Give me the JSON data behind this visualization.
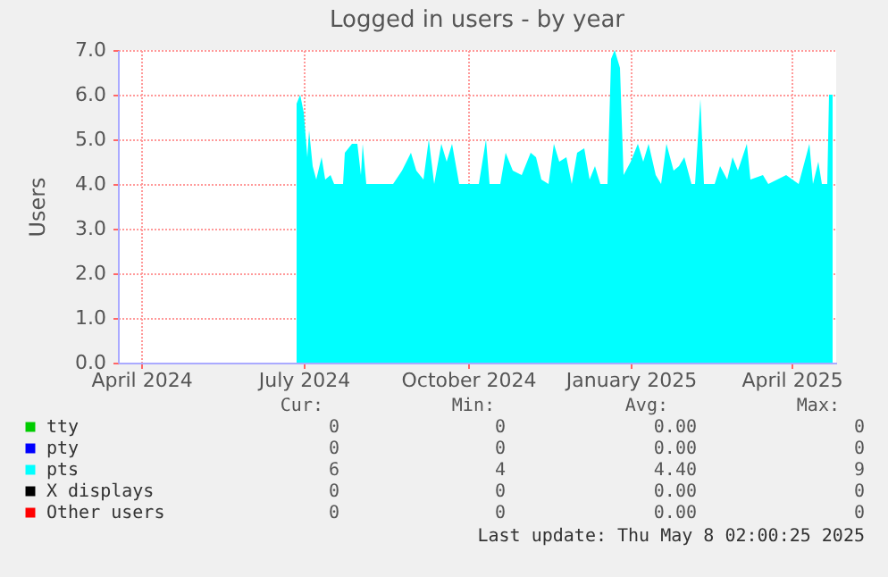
{
  "chart_data": {
    "type": "area",
    "title": "Logged in users - by year",
    "ylabel": "Users",
    "x": [
      "2024-07-16",
      "2024-07-18",
      "2024-07-20",
      "2024-07-22",
      "2024-07-23",
      "2024-07-25",
      "2024-07-27",
      "2024-07-30",
      "2024-08-01",
      "2024-08-04",
      "2024-08-06",
      "2024-08-11",
      "2024-08-12",
      "2024-08-16",
      "2024-08-19",
      "2024-08-21",
      "2024-08-22",
      "2024-08-24",
      "2024-09-08",
      "2024-09-13",
      "2024-09-18",
      "2024-09-21",
      "2024-09-25",
      "2024-09-28",
      "2024-10-01",
      "2024-10-05",
      "2024-10-08",
      "2024-10-11",
      "2024-10-15",
      "2024-10-26",
      "2024-10-30",
      "2024-11-01",
      "2024-11-07",
      "2024-11-10",
      "2024-11-14",
      "2024-11-19",
      "2024-11-24",
      "2024-11-27",
      "2024-11-30",
      "2024-12-04",
      "2024-12-07",
      "2024-12-10",
      "2024-12-14",
      "2024-12-17",
      "2024-12-20",
      "2024-12-24",
      "2024-12-27",
      "2024-12-30",
      "2025-01-02",
      "2025-01-06",
      "2025-01-08",
      "2025-01-10",
      "2025-01-13",
      "2025-01-15",
      "2025-01-19",
      "2025-01-23",
      "2025-01-26",
      "2025-01-29",
      "2025-02-02",
      "2025-02-05",
      "2025-02-08",
      "2025-02-12",
      "2025-02-15",
      "2025-02-18",
      "2025-02-22",
      "2025-02-24",
      "2025-02-27",
      "2025-03-01",
      "2025-03-07",
      "2025-03-10",
      "2025-03-14",
      "2025-03-17",
      "2025-03-20",
      "2025-03-25",
      "2025-03-27",
      "2025-04-03",
      "2025-04-06",
      "2025-04-16",
      "2025-04-23",
      "2025-04-29",
      "2025-05-01",
      "2025-05-04",
      "2025-05-06",
      "2025-05-09",
      "2025-05-10",
      "2025-05-12"
    ],
    "series": [
      {
        "name": "tty",
        "color": "#00cc00",
        "values": [
          null,
          null,
          null,
          null,
          null,
          null,
          null,
          null,
          null,
          null,
          null,
          null,
          null,
          null,
          null,
          null,
          null,
          null,
          null,
          null,
          null,
          null,
          null,
          null,
          null,
          null,
          null,
          null,
          null,
          null,
          null,
          null,
          null,
          null,
          null,
          null,
          null,
          null,
          null,
          null,
          null,
          null,
          null,
          null,
          null,
          null,
          null,
          null,
          null,
          null,
          null,
          null,
          null,
          null,
          null,
          null,
          null,
          null,
          null,
          null,
          null,
          null,
          null,
          null,
          null,
          null,
          null,
          null,
          null,
          null,
          null,
          null,
          null,
          null,
          null,
          null,
          null,
          null,
          null,
          null,
          null,
          null,
          null,
          null,
          null,
          null
        ]
      },
      {
        "name": "pty",
        "color": "#0000ff",
        "values": [
          null,
          null,
          null,
          null,
          null,
          null,
          null,
          null,
          null,
          null,
          null,
          null,
          null,
          null,
          null,
          null,
          null,
          null,
          null,
          null,
          null,
          null,
          null,
          null,
          null,
          null,
          null,
          null,
          null,
          null,
          null,
          null,
          null,
          null,
          null,
          null,
          null,
          null,
          null,
          null,
          null,
          null,
          null,
          null,
          null,
          null,
          null,
          null,
          null,
          null,
          null,
          null,
          null,
          null,
          null,
          null,
          null,
          null,
          null,
          null,
          null,
          null,
          null,
          null,
          null,
          null,
          null,
          null,
          null,
          null,
          null,
          null,
          null,
          null,
          null,
          null,
          null,
          null,
          null,
          null,
          null,
          null,
          null,
          null,
          null,
          null
        ]
      },
      {
        "name": "pts",
        "color": "#00ffff",
        "values": [
          5.8,
          6.0,
          5.6,
          4.6,
          5.2,
          4.4,
          4.1,
          4.6,
          4.1,
          4.2,
          4.0,
          4.0,
          4.7,
          4.9,
          4.9,
          4.2,
          4.9,
          4.0,
          4.0,
          4.3,
          4.7,
          4.3,
          4.1,
          5.0,
          4.0,
          4.9,
          4.5,
          4.9,
          4.0,
          4.0,
          5.0,
          4.0,
          4.0,
          4.7,
          4.3,
          4.2,
          4.7,
          4.6,
          4.1,
          4.0,
          4.9,
          4.5,
          4.6,
          4.0,
          4.7,
          4.8,
          4.1,
          4.4,
          4.0,
          4.0,
          6.8,
          7.0,
          6.6,
          4.2,
          4.5,
          4.9,
          4.5,
          4.9,
          4.2,
          4.0,
          4.9,
          4.3,
          4.4,
          4.6,
          4.0,
          4.0,
          5.9,
          4.0,
          4.0,
          4.4,
          4.1,
          4.6,
          4.3,
          4.9,
          4.1,
          4.2,
          4.0,
          4.2,
          4.0,
          4.9,
          4.0,
          4.5,
          4.0,
          4.0,
          6.0,
          6.0
        ]
      },
      {
        "name": "X displays",
        "color": "#000000",
        "values": [
          null,
          null,
          null,
          null,
          null,
          null,
          null,
          null,
          null,
          null,
          null,
          null,
          null,
          null,
          null,
          null,
          null,
          null,
          null,
          null,
          null,
          null,
          null,
          null,
          null,
          null,
          null,
          null,
          null,
          null,
          null,
          null,
          null,
          null,
          null,
          null,
          null,
          null,
          null,
          null,
          null,
          null,
          null,
          null,
          null,
          null,
          null,
          null,
          null,
          null,
          null,
          null,
          null,
          null,
          null,
          null,
          null,
          null,
          null,
          null,
          null,
          null,
          null,
          null,
          null,
          null,
          null,
          null,
          null,
          null,
          null,
          null,
          null,
          null,
          null,
          null,
          null,
          null,
          null,
          null,
          null,
          null,
          null,
          null,
          null,
          null
        ]
      },
      {
        "name": "Other users",
        "color": "#ff0000",
        "values": [
          null,
          null,
          null,
          null,
          null,
          null,
          null,
          null,
          null,
          null,
          null,
          null,
          null,
          null,
          null,
          null,
          null,
          null,
          null,
          null,
          null,
          null,
          null,
          null,
          null,
          null,
          null,
          null,
          null,
          null,
          null,
          null,
          null,
          null,
          null,
          null,
          null,
          null,
          null,
          null,
          null,
          null,
          null,
          null,
          null,
          null,
          null,
          null,
          null,
          null,
          null,
          null,
          null,
          null,
          null,
          null,
          null,
          null,
          null,
          null,
          null,
          null,
          null,
          null,
          null,
          null,
          null,
          null,
          null,
          null,
          null,
          null,
          null,
          null,
          null,
          null,
          null,
          null,
          null,
          null,
          null,
          null,
          null,
          null,
          null,
          null
        ]
      }
    ],
    "xlim": [
      "2024-04-07",
      "2025-05-14"
    ],
    "xticks": [
      {
        "value": "2024-04-20",
        "label": "April 2024"
      },
      {
        "value": "2024-07-20",
        "label": "July 2024"
      },
      {
        "value": "2024-10-20",
        "label": "October 2024"
      },
      {
        "value": "2025-01-19",
        "label": "January 2025"
      },
      {
        "value": "2025-04-19",
        "label": "April 2025"
      }
    ],
    "ylim": [
      0,
      7
    ],
    "yticks": [
      {
        "value": 0,
        "label": "0.0"
      },
      {
        "value": 1,
        "label": "1.0"
      },
      {
        "value": 2,
        "label": "2.0"
      },
      {
        "value": 3,
        "label": "3.0"
      },
      {
        "value": 4,
        "label": "4.0"
      },
      {
        "value": 5,
        "label": "5.0"
      },
      {
        "value": 6,
        "label": "6.0"
      },
      {
        "value": 7,
        "label": "7.0"
      }
    ],
    "grid": true,
    "legend": "bottom",
    "annotations": [
      "Cur:",
      "Min:",
      "Avg:",
      "Max:",
      "0",
      "0",
      "0.00",
      "0",
      "0",
      "0",
      "0.00",
      "0",
      "6",
      "4",
      "4.40",
      "9",
      "0",
      "0",
      "0.00",
      "0",
      "0",
      "0",
      "0.00",
      "0",
      "Last update: Thu May  8 02:00:25 2025"
    ]
  }
}
